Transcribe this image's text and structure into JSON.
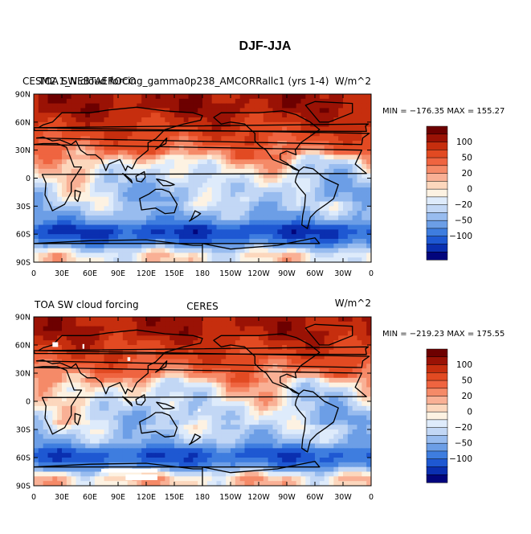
{
  "figure": {
    "title": "DJF-JJA"
  },
  "colors": {
    "levels": [
      "#02057c",
      "#0a2fb0",
      "#1e58d2",
      "#3e7ddf",
      "#6c9ee6",
      "#98bcef",
      "#c2d7f5",
      "#deebfb",
      "#fdf2e2",
      "#fcd7bd",
      "#f9b095",
      "#f58a68",
      "#ef6440",
      "#e24a22",
      "#c62e0e",
      "#9a1205",
      "#6d0000"
    ],
    "coast": "#000000",
    "missing": "#ffffff"
  },
  "colorbar": {
    "labels": [
      "100",
      "50",
      "20",
      "0",
      "−20",
      "−50",
      "−100"
    ]
  },
  "panels": [
    {
      "left": "CESM2.1_NEBTAEROCO",
      "left_overlay": "TOA SW cloud forcing_gamma0p238_AMCORRallc1 (yrs 1-4)",
      "center": "",
      "right": "W/m^2",
      "stats": "MIN = −176.35 MAX = 155.27"
    },
    {
      "left": "TOA SW cloud forcing",
      "left_overlay": "",
      "center": "CERES",
      "right": "W/m^2",
      "stats": "MIN = −219.23 MAX = 175.55"
    }
  ],
  "axes": {
    "lat_labels": [
      "90N",
      "60N",
      "30N",
      "0",
      "30S",
      "60S",
      "90S"
    ],
    "lon_labels": [
      "0",
      "30E",
      "60E",
      "90E",
      "120E",
      "150E",
      "180",
      "150W",
      "120W",
      "90W",
      "60W",
      "30W",
      "0"
    ]
  },
  "chart_data": [
    {
      "type": "heatmap",
      "title": "CESM2.1_NEBTAEROCO TOA SW cloud forcing_gamma0p238_AMCORRallc1 (yrs 1-4)",
      "units": "W/m^2",
      "variable": "DJF-JJA TOA SW cloud forcing",
      "xlabel": "",
      "ylabel": "",
      "xlim": [
        0,
        360
      ],
      "ylim": [
        -90,
        90
      ],
      "min": -176.35,
      "max": 155.27,
      "colorbar_levels": [
        -150,
        -125,
        -100,
        -75,
        -50,
        -35,
        -20,
        -10,
        0,
        10,
        20,
        35,
        50,
        75,
        100,
        125,
        150
      ],
      "zonal_pattern": [
        {
          "lat": 75,
          "value": 110
        },
        {
          "lat": 60,
          "value": 85
        },
        {
          "lat": 45,
          "value": 65
        },
        {
          "lat": 30,
          "value": 40
        },
        {
          "lat": 15,
          "value": -5
        },
        {
          "lat": 0,
          "value": -20
        },
        {
          "lat": -15,
          "value": -35
        },
        {
          "lat": -30,
          "value": -30
        },
        {
          "lat": -45,
          "value": -60
        },
        {
          "lat": -55,
          "value": -130
        },
        {
          "lat": -65,
          "value": -110
        },
        {
          "lat": -80,
          "value": -5
        }
      ]
    },
    {
      "type": "heatmap",
      "title": "TOA SW cloud forcing CERES",
      "units": "W/m^2",
      "variable": "DJF-JJA TOA SW cloud forcing",
      "xlabel": "",
      "ylabel": "",
      "xlim": [
        0,
        360
      ],
      "ylim": [
        -90,
        90
      ],
      "min": -219.23,
      "max": 175.55,
      "colorbar_levels": [
        -150,
        -125,
        -100,
        -75,
        -50,
        -35,
        -20,
        -10,
        0,
        10,
        20,
        35,
        50,
        75,
        100,
        125,
        150
      ],
      "zonal_pattern": [
        {
          "lat": 75,
          "value": 105
        },
        {
          "lat": 60,
          "value": 80
        },
        {
          "lat": 45,
          "value": 60
        },
        {
          "lat": 30,
          "value": 35
        },
        {
          "lat": 15,
          "value": -5
        },
        {
          "lat": 0,
          "value": -15
        },
        {
          "lat": -15,
          "value": -30
        },
        {
          "lat": -30,
          "value": -25
        },
        {
          "lat": -45,
          "value": -50
        },
        {
          "lat": -55,
          "value": -115
        },
        {
          "lat": -65,
          "value": -100
        },
        {
          "lat": -80,
          "value": 5
        }
      ]
    }
  ]
}
